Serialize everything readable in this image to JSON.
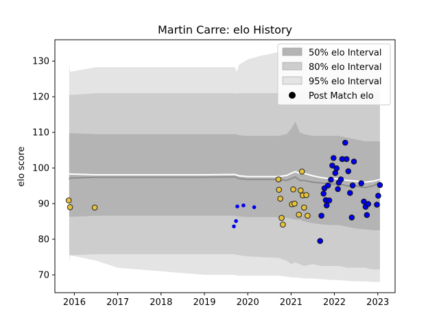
{
  "chart_data": {
    "type": "scatter",
    "title": "Martin Carre: elo History",
    "xlabel": "",
    "ylabel": "elo score",
    "xlim": [
      2015.55,
      2023.4
    ],
    "ylim": [
      65,
      136
    ],
    "x_ticks": [
      2016,
      2017,
      2018,
      2019,
      2020,
      2021,
      2022,
      2023
    ],
    "y_ticks": [
      70,
      80,
      90,
      100,
      110,
      120,
      130
    ],
    "grid": false,
    "legend_position": "top-right",
    "legend": [
      {
        "label": "50% elo Interval",
        "kind": "band",
        "color": "#b4b4b4"
      },
      {
        "label": "80% elo Interval",
        "kind": "band",
        "color": "#cdcdcd"
      },
      {
        "label": "95% elo Interval",
        "kind": "band",
        "color": "#e4e4e4"
      },
      {
        "label": "Post Match elo",
        "kind": "marker",
        "color": "#000000"
      }
    ],
    "colors": {
      "band_50": "#b4b4b4",
      "band_80": "#cdcdcd",
      "band_95": "#e4e4e4",
      "median_line": "#8c8c8c",
      "mean_line": "#ffffff",
      "gold_marker": "#e8c23a",
      "blue_marker": "#0000ee",
      "orange_edge": "#e69500"
    },
    "intervals": {
      "x": [
        2015.88,
        2015.9,
        2016.5,
        2017.0,
        2018.0,
        2019.0,
        2019.7,
        2019.75,
        2019.8,
        2020.0,
        2020.3,
        2020.7,
        2020.9,
        2021.0,
        2021.1,
        2021.2,
        2021.3,
        2021.5,
        2021.7,
        2021.9,
        2022.1,
        2022.3,
        2022.5,
        2022.7,
        2022.9,
        2023.05
      ],
      "p95_high": [
        129.5,
        127.0,
        128.3,
        128.3,
        128.3,
        128.3,
        128.3,
        127.0,
        129.0,
        130.5,
        131.5,
        132.5,
        133.5,
        134.0,
        134.5,
        134.5,
        134.0,
        133.5,
        133.0,
        132.5,
        132.0,
        131.5,
        131.5,
        131.5,
        131.0,
        131.0
      ],
      "p80_high": [
        121.0,
        120.5,
        121.0,
        121.0,
        121.0,
        121.0,
        121.0,
        120.8,
        121.0,
        121.0,
        121.0,
        121.0,
        121.5,
        121.5,
        121.5,
        121.5,
        121.5,
        121.5,
        121.5,
        121.5,
        121.5,
        121.5,
        121.5,
        121.5,
        121.5,
        121.5
      ],
      "p50_high": [
        110.0,
        109.8,
        109.5,
        109.5,
        109.5,
        109.5,
        109.5,
        109.4,
        109.2,
        109.0,
        109.0,
        109.0,
        109.5,
        111.0,
        113.0,
        110.0,
        109.5,
        109.0,
        109.0,
        109.0,
        109.0,
        108.5,
        108.0,
        107.5,
        107.5,
        107.5
      ],
      "mean": [
        98.5,
        98.3,
        98.1,
        98.1,
        98.1,
        98.1,
        98.2,
        98.0,
        97.8,
        97.6,
        97.6,
        97.6,
        97.9,
        98.5,
        99.0,
        98.5,
        98.5,
        97.8,
        97.3,
        97.0,
        97.0,
        96.5,
        96.3,
        96.0,
        96.3,
        96.8
      ],
      "median": [
        96.8,
        97.2,
        97.4,
        97.4,
        97.4,
        97.4,
        97.5,
        97.3,
        97.0,
        96.8,
        96.8,
        96.8,
        96.5,
        97.0,
        97.5,
        96.5,
        96.5,
        96.0,
        95.8,
        95.5,
        95.5,
        95.0,
        95.0,
        94.5,
        95.0,
        96.0
      ],
      "p50_low": [
        86.5,
        86.3,
        86.6,
        86.6,
        86.6,
        86.6,
        86.6,
        86.5,
        86.4,
        86.2,
        86.2,
        86.2,
        86.0,
        85.8,
        85.5,
        85.5,
        85.0,
        84.5,
        84.2,
        84.0,
        84.0,
        83.5,
        83.0,
        82.8,
        82.5,
        82.5
      ],
      "p80_low": [
        76.0,
        75.5,
        75.8,
        75.8,
        75.8,
        75.8,
        75.8,
        75.6,
        75.5,
        75.2,
        75.0,
        74.8,
        74.0,
        73.0,
        73.5,
        73.0,
        72.5,
        73.0,
        72.5,
        72.5,
        72.5,
        72.0,
        72.0,
        72.0,
        71.5,
        71.5
      ],
      "p95_low": [
        73.5,
        75.5,
        74.0,
        72.0,
        71.0,
        70.0,
        70.0,
        69.8,
        69.8,
        69.8,
        69.8,
        69.8,
        69.5,
        69.3,
        69.3,
        69.2,
        69.0,
        69.0,
        68.8,
        68.6,
        68.5,
        68.3,
        68.2,
        68.2,
        68.0,
        68.0
      ]
    },
    "series": [
      {
        "marker": "gold",
        "points": [
          {
            "x": 2015.87,
            "y": 90.9
          },
          {
            "x": 2015.9,
            "y": 89.0
          },
          {
            "x": 2016.47,
            "y": 88.9
          }
        ]
      },
      {
        "marker": "blue-small",
        "points": [
          {
            "x": 2019.68,
            "y": 83.6
          },
          {
            "x": 2019.73,
            "y": 85.1
          },
          {
            "x": 2019.76,
            "y": 89.2
          },
          {
            "x": 2019.9,
            "y": 89.5
          },
          {
            "x": 2020.15,
            "y": 89.0
          }
        ]
      },
      {
        "marker": "gold",
        "points": [
          {
            "x": 2020.71,
            "y": 96.8
          },
          {
            "x": 2020.72,
            "y": 93.9
          },
          {
            "x": 2020.75,
            "y": 91.4
          },
          {
            "x": 2020.78,
            "y": 86.0
          },
          {
            "x": 2020.81,
            "y": 84.1
          },
          {
            "x": 2021.02,
            "y": 89.8
          },
          {
            "x": 2021.05,
            "y": 94.0
          },
          {
            "x": 2021.08,
            "y": 90.0
          },
          {
            "x": 2021.18,
            "y": 86.9
          },
          {
            "x": 2021.22,
            "y": 93.7
          },
          {
            "x": 2021.25,
            "y": 99.0
          },
          {
            "x": 2021.27,
            "y": 92.3
          },
          {
            "x": 2021.3,
            "y": 88.9
          },
          {
            "x": 2021.35,
            "y": 92.4
          },
          {
            "x": 2021.38,
            "y": 86.6
          }
        ]
      },
      {
        "marker": "blue-outlined",
        "points": [
          {
            "x": 2021.67,
            "y": 79.5
          },
          {
            "x": 2021.7,
            "y": 86.6
          },
          {
            "x": 2021.75,
            "y": 92.8
          },
          {
            "x": 2021.77,
            "y": 94.3
          },
          {
            "x": 2021.8,
            "y": 91.0
          },
          {
            "x": 2021.82,
            "y": 89.5
          },
          {
            "x": 2021.85,
            "y": 95.1
          },
          {
            "x": 2021.88,
            "y": 90.9
          },
          {
            "x": 2021.92,
            "y": 96.7
          },
          {
            "x": 2021.95,
            "y": 100.7
          },
          {
            "x": 2021.98,
            "y": 102.8
          },
          {
            "x": 2022.02,
            "y": 98.6
          },
          {
            "x": 2022.05,
            "y": 99.9
          },
          {
            "x": 2022.08,
            "y": 94.1
          },
          {
            "x": 2022.1,
            "y": 95.9
          },
          {
            "x": 2022.15,
            "y": 96.8
          },
          {
            "x": 2022.18,
            "y": 102.5
          },
          {
            "x": 2022.25,
            "y": 107.1
          },
          {
            "x": 2022.28,
            "y": 102.5
          },
          {
            "x": 2022.32,
            "y": 99.1
          },
          {
            "x": 2022.36,
            "y": 93.0
          },
          {
            "x": 2022.4,
            "y": 86.1
          },
          {
            "x": 2022.42,
            "y": 95.1
          },
          {
            "x": 2022.45,
            "y": 101.8
          },
          {
            "x": 2022.62,
            "y": 95.7
          },
          {
            "x": 2022.68,
            "y": 90.6
          },
          {
            "x": 2022.72,
            "y": 89.1
          },
          {
            "x": 2022.75,
            "y": 86.8
          },
          {
            "x": 2022.78,
            "y": 89.9
          },
          {
            "x": 2022.98,
            "y": 89.7
          },
          {
            "x": 2023.01,
            "y": 92.2
          },
          {
            "x": 2023.05,
            "y": 95.2
          }
        ]
      }
    ]
  }
}
